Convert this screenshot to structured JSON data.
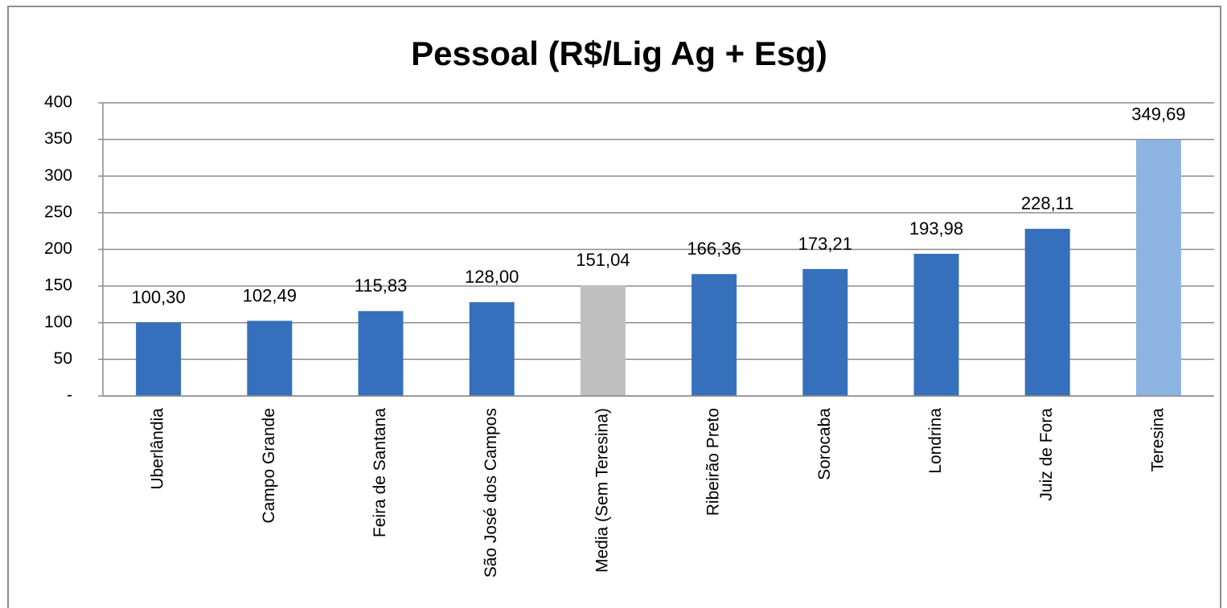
{
  "chart_data": {
    "type": "bar",
    "title": "Pessoal (R$/Lig Ag + Esg)",
    "categories": [
      "Uberlândia",
      "Campo Grande",
      "Feira de Santana",
      "São José dos Campos",
      "Media (Sem Teresina)",
      "Ribeirão Preto",
      "Sorocaba",
      "Londrina",
      "Juiz de Fora",
      "Teresina"
    ],
    "values": [
      100.3,
      102.49,
      115.83,
      128.0,
      151.04,
      166.36,
      173.21,
      193.98,
      228.11,
      349.69
    ],
    "value_labels": [
      "100,30",
      "102,49",
      "115,83",
      "128,00",
      "151,04",
      "166,36",
      "173,21",
      "193,98",
      "228,11",
      "349,69"
    ],
    "colors": [
      "#3670bd",
      "#3670bd",
      "#3670bd",
      "#3670bd",
      "#bfbfbf",
      "#3670bd",
      "#3670bd",
      "#3670bd",
      "#3670bd",
      "#8db3e2"
    ],
    "ylim": [
      0,
      400
    ],
    "yticks": [
      {
        "value": 0,
        "label": "-"
      },
      50,
      100,
      150,
      200,
      250,
      300,
      350,
      400
    ],
    "grid": true
  }
}
